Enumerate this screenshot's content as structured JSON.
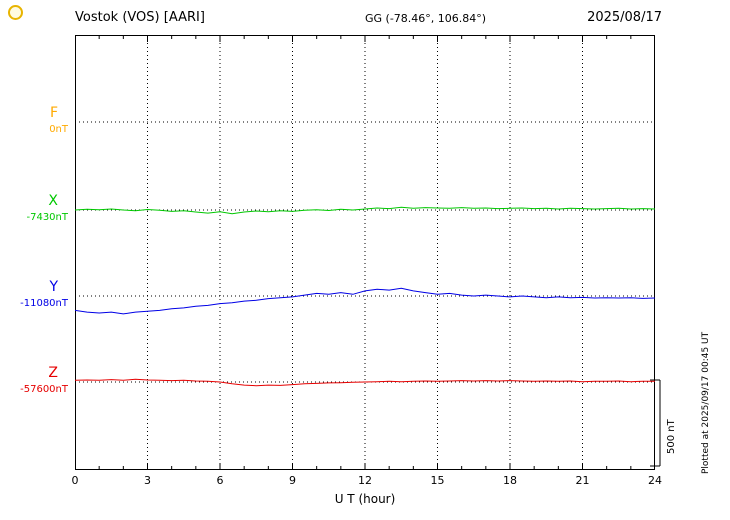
{
  "header": {
    "station": "Vostok (VOS)  [AARI]",
    "coords": "GG (-78.46°, 106.84°)",
    "date": "2025/08/17"
  },
  "axis": {
    "xlabel": "U T (hour)",
    "ticks": [
      "0",
      "3",
      "6",
      "9",
      "12",
      "15",
      "18",
      "21",
      "24"
    ]
  },
  "components": [
    {
      "id": "F",
      "label": "F",
      "baseline_label": "0nT",
      "color": "#ffaa00"
    },
    {
      "id": "X",
      "label": "X",
      "baseline_label": "-7430nT",
      "color": "#00c800"
    },
    {
      "id": "Y",
      "label": "Y",
      "baseline_label": "-11080nT",
      "color": "#0000e6"
    },
    {
      "id": "Z",
      "label": "Z",
      "baseline_label": "-57600nT",
      "color": "#e60000"
    }
  ],
  "scale_bar": {
    "label": "500 nT"
  },
  "footer_note": "Plotted at 2025/09/17 00:45 UT",
  "chart_data": {
    "type": "line",
    "title": "Vostok (VOS) [AARI] magnetogram",
    "date": "2025/08/17",
    "xlabel": "U T (hour)",
    "xlim": [
      0,
      24
    ],
    "x_tick_hours": [
      0,
      3,
      6,
      9,
      12,
      15,
      18,
      21,
      24
    ],
    "x_step_hours": 0.5,
    "scale_bar_nT": 500,
    "values_unit": "nT offset from baseline_nT",
    "series": [
      {
        "name": "F",
        "baseline_nT": 0,
        "color": "#ffaa00",
        "values": []
      },
      {
        "name": "X",
        "baseline_nT": -7430,
        "color": "#00c800",
        "values": [
          0,
          5,
          2,
          6,
          0,
          -4,
          3,
          -2,
          -8,
          -5,
          -12,
          -18,
          -10,
          -22,
          -12,
          -6,
          -10,
          -4,
          -8,
          -2,
          2,
          -3,
          4,
          0,
          6,
          12,
          8,
          16,
          10,
          14,
          12,
          10,
          14,
          10,
          12,
          8,
          10,
          12,
          8,
          10,
          6,
          10,
          8,
          6,
          8,
          10,
          6,
          8,
          6
        ]
      },
      {
        "name": "Y",
        "baseline_nT": -11080,
        "color": "#0000e6",
        "values": [
          -85,
          -95,
          -100,
          -95,
          -105,
          -95,
          -90,
          -85,
          -75,
          -70,
          -60,
          -55,
          -45,
          -40,
          -30,
          -25,
          -15,
          -10,
          -5,
          5,
          15,
          10,
          20,
          10,
          30,
          40,
          35,
          45,
          30,
          20,
          10,
          15,
          5,
          0,
          5,
          0,
          -5,
          0,
          -5,
          -10,
          -5,
          -10,
          -8,
          -12,
          -10,
          -12,
          -10,
          -14,
          -12
        ]
      },
      {
        "name": "Z",
        "baseline_nT": -57600,
        "color": "#e60000",
        "values": [
          10,
          12,
          10,
          14,
          10,
          16,
          12,
          10,
          8,
          10,
          6,
          4,
          0,
          -10,
          -18,
          -22,
          -18,
          -20,
          -15,
          -10,
          -8,
          -5,
          -4,
          -2,
          0,
          2,
          4,
          2,
          4,
          6,
          4,
          6,
          8,
          6,
          8,
          6,
          8,
          6,
          4,
          6,
          4,
          6,
          2,
          4,
          4,
          6,
          2,
          4,
          4
        ]
      }
    ]
  }
}
